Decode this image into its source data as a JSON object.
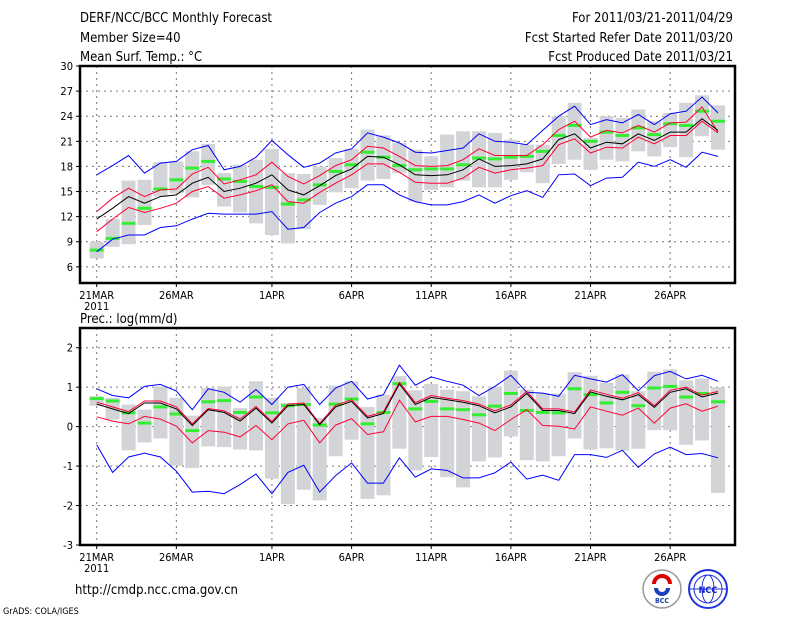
{
  "header": {
    "title": "DERF/NCC/BCC Monthly Forecast",
    "member_size": "Member Size=40",
    "variable": "Mean Surf. Temp.: °C",
    "period": "For 2011/03/21-2011/04/29",
    "started": "Fcst Started Refer Date 2011/03/20",
    "produced": "Fcst Produced Date 2011/03/21"
  },
  "footer": {
    "url": "http://cmdp.ncc.cma.gov.cn",
    "credit": "GrADS: COLA/IGES",
    "logo_bcc": "BCC",
    "logo_ncc": "NCC"
  },
  "colors": {
    "max_min": "#0000ff",
    "spread": "#ff0033",
    "mean": "#000000",
    "observed": "#33ee33",
    "range": "#d3d4d8"
  },
  "chart_data": [
    {
      "type": "line",
      "title": "Mean Surf. Temp.: °C",
      "xlabel": "",
      "ylabel": "",
      "x_start": "2011-03-21",
      "days": 40,
      "xticks": [
        {
          "day": 0,
          "label": "21MAR"
        },
        {
          "day": 5,
          "label": "26MAR"
        },
        {
          "day": 11,
          "label": "1APR"
        },
        {
          "day": 16,
          "label": "6APR"
        },
        {
          "day": 21,
          "label": "11APR"
        },
        {
          "day": 26,
          "label": "16APR"
        },
        {
          "day": 31,
          "label": "21APR"
        },
        {
          "day": 36,
          "label": "26APR"
        }
      ],
      "year_label": "2011",
      "yticks": [
        6,
        9,
        12,
        15,
        18,
        21,
        24,
        27,
        30
      ],
      "ylim": [
        4.07,
        30
      ],
      "grid": true,
      "series": [
        {
          "name": "max",
          "color": "#0000ff",
          "values": [
            17.0,
            18.1,
            19.3,
            17.2,
            18.4,
            18.6,
            20.0,
            20.5,
            17.6,
            18.0,
            19.1,
            21.1,
            19.4,
            17.9,
            18.4,
            19.6,
            20.1,
            22.0,
            21.5,
            20.8,
            19.7,
            19.6,
            19.9,
            20.2,
            21.9,
            21.0,
            20.9,
            20.6,
            22.3,
            24.0,
            25.2,
            23.0,
            23.6,
            23.2,
            24.2,
            23.0,
            24.3,
            24.6,
            26.3,
            24.4
          ]
        },
        {
          "name": "upper",
          "color": "#ff0033",
          "values": [
            12.6,
            14.2,
            15.4,
            14.4,
            15.2,
            15.3,
            17.1,
            17.9,
            15.9,
            16.4,
            17.0,
            18.5,
            16.8,
            15.9,
            16.9,
            18.1,
            18.8,
            20.4,
            20.2,
            19.2,
            18.1,
            18.0,
            18.1,
            18.8,
            20.1,
            19.3,
            19.3,
            19.3,
            20.6,
            22.4,
            23.4,
            21.5,
            22.3,
            22.0,
            22.9,
            22.1,
            23.2,
            23.3,
            25.1,
            22.1
          ]
        },
        {
          "name": "mean",
          "color": "#000000",
          "values": [
            11.7,
            13.0,
            14.4,
            13.6,
            14.4,
            14.6,
            16.0,
            16.7,
            15.0,
            15.4,
            16.0,
            17.0,
            15.2,
            14.6,
            15.7,
            16.9,
            17.7,
            19.2,
            19.1,
            18.2,
            17.0,
            16.9,
            17.0,
            17.6,
            18.9,
            18.0,
            18.1,
            18.3,
            18.9,
            21.2,
            21.9,
            20.2,
            20.9,
            20.7,
            21.9,
            21.1,
            22.1,
            22.1,
            23.7,
            22.3
          ]
        },
        {
          "name": "lower",
          "color": "#ff0033",
          "values": [
            10.2,
            11.7,
            13.1,
            12.5,
            13.0,
            13.6,
            15.0,
            15.6,
            14.2,
            14.6,
            15.1,
            15.8,
            13.8,
            13.6,
            14.9,
            16.0,
            17.0,
            18.3,
            18.3,
            17.3,
            16.1,
            16.0,
            16.0,
            16.6,
            17.9,
            17.2,
            17.6,
            17.8,
            18.1,
            20.6,
            21.3,
            19.6,
            20.3,
            20.2,
            21.5,
            20.7,
            21.7,
            21.7,
            23.4,
            22.0
          ]
        },
        {
          "name": "min",
          "color": "#0000ff",
          "values": [
            7.8,
            9.3,
            9.8,
            9.8,
            10.7,
            10.9,
            11.7,
            12.4,
            12.3,
            12.3,
            12.3,
            12.6,
            10.5,
            10.7,
            12.5,
            13.6,
            14.4,
            15.8,
            15.8,
            14.6,
            13.8,
            13.4,
            13.4,
            13.8,
            14.6,
            13.6,
            14.5,
            15.1,
            14.3,
            17.0,
            17.1,
            15.7,
            16.6,
            16.7,
            18.5,
            18.0,
            18.8,
            17.9,
            19.7,
            19.2
          ]
        }
      ],
      "observed": [
        8.0,
        9.4,
        11.2,
        13.0,
        15.3,
        16.4,
        17.8,
        18.6,
        16.5,
        16.2,
        15.6,
        15.5,
        13.5,
        14.0,
        15.8,
        17.4,
        18.2,
        19.7,
        19.1,
        18.1,
        17.6,
        17.7,
        17.7,
        18.2,
        19.0,
        18.9,
        19.1,
        19.2,
        19.8,
        21.7,
        22.9,
        21.0,
        22.1,
        21.7,
        22.6,
        21.8,
        23.1,
        22.9,
        24.6,
        23.4
      ],
      "range_low": [
        7.0,
        8.4,
        8.7,
        11.0,
        14.4,
        14.8,
        14.3,
        15.8,
        13.2,
        12.5,
        11.2,
        9.8,
        8.8,
        10.5,
        13.4,
        14.9,
        15.4,
        16.3,
        16.5,
        17.2,
        13.8,
        15.2,
        15.5,
        16.3,
        15.5,
        15.5,
        16.4,
        17.3,
        16.0,
        18.3,
        18.8,
        17.6,
        18.8,
        18.6,
        19.8,
        19.2,
        20.3,
        19.1,
        21.6,
        20.0
      ],
      "range_high": [
        9.0,
        11.7,
        16.3,
        16.4,
        18.5,
        18.6,
        19.8,
        20.7,
        17.2,
        18.2,
        18.8,
        20.1,
        17.2,
        17.1,
        18.0,
        19.0,
        20.1,
        22.4,
        21.7,
        20.8,
        20.0,
        19.2,
        21.8,
        22.2,
        22.2,
        22.0,
        21.2,
        20.6,
        20.6,
        24.0,
        25.6,
        21.4,
        24.0,
        23.8,
        24.8,
        23.4,
        24.4,
        25.6,
        26.5,
        25.3
      ]
    },
    {
      "type": "line",
      "title": "Prec.: log(mm/d)",
      "xlabel": "",
      "ylabel": "",
      "x_start": "2011-03-21",
      "days": 40,
      "xticks": [
        {
          "day": 0,
          "label": "21MAR"
        },
        {
          "day": 5,
          "label": "26MAR"
        },
        {
          "day": 11,
          "label": "1APR"
        },
        {
          "day": 16,
          "label": "6APR"
        },
        {
          "day": 21,
          "label": "11APR"
        },
        {
          "day": 26,
          "label": "16APR"
        },
        {
          "day": 31,
          "label": "21APR"
        },
        {
          "day": 36,
          "label": "26APR"
        }
      ],
      "year_label": "2011",
      "yticks": [
        -3,
        -2,
        -1,
        0,
        1,
        2
      ],
      "ylim": [
        -3,
        2.5
      ],
      "grid": true,
      "series": [
        {
          "name": "max",
          "color": "#0000ff",
          "values": [
            0.96,
            0.79,
            0.73,
            1.02,
            1.07,
            0.9,
            0.43,
            0.96,
            0.87,
            0.62,
            0.94,
            0.56,
            1.0,
            1.07,
            0.56,
            0.98,
            1.15,
            0.7,
            0.81,
            1.56,
            1.05,
            1.26,
            1.15,
            1.05,
            0.79,
            1.02,
            1.3,
            0.87,
            0.85,
            0.77,
            1.3,
            1.21,
            1.13,
            1.32,
            0.91,
            1.29,
            1.4,
            1.21,
            1.3,
            1.15
          ]
        },
        {
          "name": "upper",
          "color": "#ff0033",
          "values": [
            0.62,
            0.5,
            0.38,
            0.65,
            0.65,
            0.5,
            0.07,
            0.46,
            0.4,
            0.19,
            0.51,
            0.13,
            0.57,
            0.6,
            0.08,
            0.54,
            0.68,
            0.26,
            0.37,
            1.12,
            0.61,
            0.79,
            0.72,
            0.66,
            0.57,
            0.4,
            0.55,
            0.89,
            0.45,
            0.45,
            0.37,
            0.93,
            0.82,
            0.72,
            0.86,
            0.53,
            0.92,
            1.0,
            0.8,
            0.89
          ]
        },
        {
          "name": "mean",
          "color": "#000000",
          "values": [
            0.57,
            0.45,
            0.33,
            0.6,
            0.6,
            0.45,
            0.03,
            0.43,
            0.36,
            0.14,
            0.47,
            0.09,
            0.53,
            0.56,
            0.05,
            0.5,
            0.64,
            0.22,
            0.33,
            1.08,
            0.56,
            0.74,
            0.68,
            0.62,
            0.53,
            0.35,
            0.5,
            0.84,
            0.41,
            0.41,
            0.33,
            0.88,
            0.77,
            0.68,
            0.81,
            0.49,
            0.87,
            0.96,
            0.75,
            0.85
          ]
        },
        {
          "name": "lower",
          "color": "#ff0033",
          "values": [
            0.25,
            0.14,
            0.07,
            0.26,
            0.19,
            0.01,
            -0.41,
            -0.1,
            -0.14,
            -0.26,
            0.03,
            -0.33,
            0.07,
            0.16,
            -0.41,
            0.04,
            0.2,
            -0.2,
            -0.13,
            0.67,
            0.12,
            0.26,
            0.26,
            0.18,
            0.09,
            -0.1,
            0.18,
            0.43,
            0.03,
            0.01,
            -0.06,
            0.5,
            0.39,
            0.29,
            0.47,
            0.09,
            0.47,
            0.58,
            0.39,
            0.52
          ]
        },
        {
          "name": "min",
          "color": "#0000ff",
          "values": [
            -0.46,
            -1.16,
            -0.77,
            -0.67,
            -0.77,
            -1.13,
            -1.66,
            -1.64,
            -1.7,
            -1.47,
            -1.2,
            -1.7,
            -1.16,
            -0.98,
            -1.66,
            -1.24,
            -0.92,
            -1.43,
            -1.43,
            -0.79,
            -1.28,
            -1.07,
            -1.11,
            -1.3,
            -1.3,
            -1.17,
            -0.9,
            -1.33,
            -1.23,
            -1.36,
            -0.71,
            -0.71,
            -0.78,
            -0.6,
            -1.03,
            -0.69,
            -0.52,
            -0.71,
            -0.68,
            -0.79
          ]
        }
      ],
      "observed": [
        0.71,
        0.65,
        0.35,
        0.09,
        0.5,
        0.32,
        -0.1,
        0.63,
        0.66,
        0.36,
        0.75,
        0.35,
        0.53,
        0.56,
        0.04,
        0.57,
        0.7,
        0.07,
        0.36,
        1.09,
        0.45,
        0.64,
        0.45,
        0.43,
        0.3,
        0.52,
        0.84,
        0.41,
        0.36,
        0.35,
        0.96,
        0.81,
        0.6,
        0.87,
        0.53,
        0.98,
        1.02,
        0.75,
        0.84,
        0.63
      ],
      "range_low": [
        0.53,
        0.18,
        -0.6,
        -0.4,
        -0.3,
        -0.99,
        -1.05,
        -0.5,
        -0.52,
        -0.58,
        -0.6,
        -1.32,
        -1.96,
        -1.6,
        -1.87,
        -0.75,
        -0.33,
        -1.83,
        -1.74,
        -0.56,
        -1.11,
        -0.77,
        -1.28,
        -1.54,
        -0.88,
        -0.78,
        -0.25,
        -0.85,
        -0.88,
        -0.75,
        -0.3,
        -0.58,
        -0.55,
        -0.61,
        -0.56,
        -0.09,
        -0.09,
        -0.46,
        -0.35,
        -1.68
      ],
      "range_high": [
        0.77,
        0.73,
        0.56,
        0.43,
        1.02,
        0.73,
        0.28,
        0.98,
        1.02,
        0.47,
        1.15,
        0.73,
        0.6,
        0.98,
        0.22,
        1.04,
        1.15,
        0.5,
        0.81,
        1.28,
        0.92,
        1.08,
        0.94,
        0.9,
        0.77,
        1.02,
        1.42,
        0.94,
        0.84,
        0.84,
        1.38,
        1.29,
        1.11,
        1.32,
        0.9,
        1.39,
        1.45,
        1.17,
        1.22,
        1.0
      ]
    }
  ]
}
